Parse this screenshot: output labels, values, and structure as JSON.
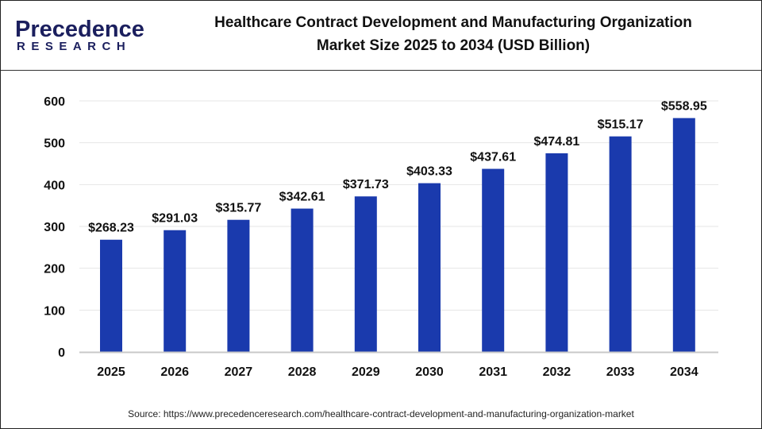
{
  "logo": {
    "text_main": "Precedence",
    "text_sub": "RESEARCH"
  },
  "header": {
    "title_line1": "Healthcare Contract Development and Manufacturing Organization",
    "title_line2": "Market  Size 2025 to 2034 (USD Billion)"
  },
  "source": "Source: https://www.precedenceresearch.com/healthcare-contract-development-and-manufacturing-organization-market",
  "colors": {
    "bar": "#1a3aad",
    "grid": "#e6e6e6",
    "axis": "#c8c8c8"
  },
  "chart_data": {
    "type": "bar",
    "title": "Healthcare Contract Development and Manufacturing Organization Market  Size 2025 to 2034 (USD Billion)",
    "categories": [
      "2025",
      "2026",
      "2027",
      "2028",
      "2029",
      "2030",
      "2031",
      "2032",
      "2033",
      "2034"
    ],
    "values": [
      268.23,
      291.03,
      315.77,
      342.61,
      371.73,
      403.33,
      437.61,
      474.81,
      515.17,
      558.95
    ],
    "data_labels": [
      "$268.23",
      "$291.03",
      "$315.77",
      "$342.61",
      "$371.73",
      "$403.33",
      "$437.61",
      "$474.81",
      "$515.17",
      "$558.95"
    ],
    "yticks": [
      0,
      100,
      200,
      300,
      400,
      500,
      600
    ],
    "ylim": [
      0,
      600
    ],
    "grid": true,
    "xlabel": "",
    "ylabel": ""
  }
}
